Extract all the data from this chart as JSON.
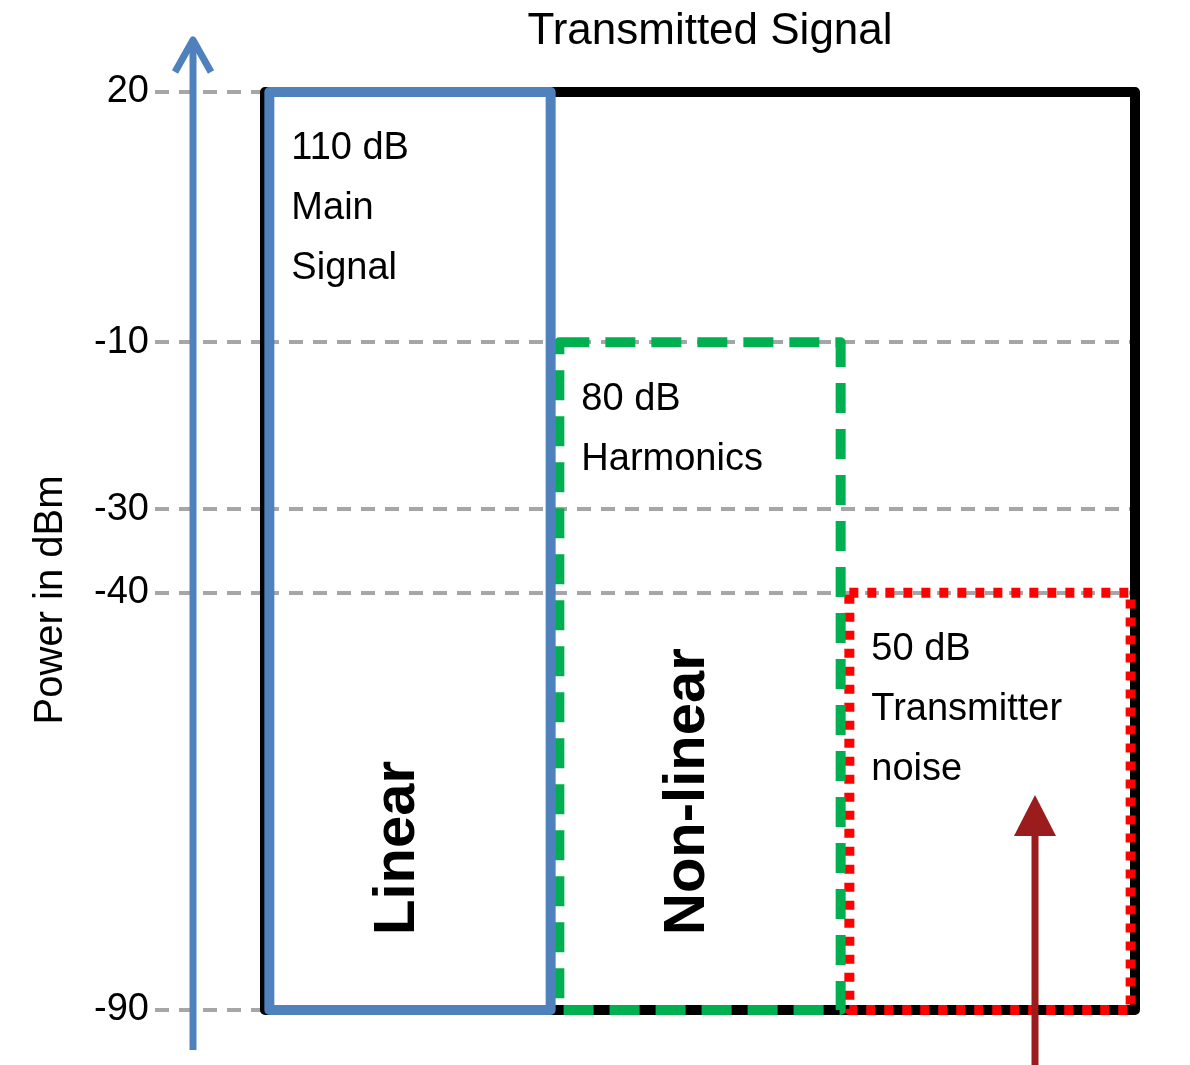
{
  "chart_data": {
    "type": "bar",
    "title": "Transmitted Signal",
    "ylabel": "Power in dBm",
    "categories": [
      null,
      null,
      null
    ],
    "series": [
      {
        "color": "#4f81bd",
        "values": [
          110,
          null,
          null
        ],
        "base": [
          -90,
          null,
          null
        ],
        "line_style": "solid",
        "value_labels": [
          "110 dB\nMain\nSignal",
          null,
          null
        ]
      },
      {
        "color": "#00b050",
        "values": [
          null,
          80,
          null
        ],
        "base": [
          null,
          -90,
          null
        ],
        "line_style": "dashed",
        "value_labels": [
          null,
          "80 dB\nHarmonics",
          null
        ]
      },
      {
        "color": "#ff0000",
        "values": [
          null,
          null,
          50
        ],
        "base": [
          null,
          null,
          -90
        ],
        "line_style": "dotted",
        "value_labels": [
          null,
          null,
          "50 dB\nTransmitter\nnoise"
        ]
      }
    ],
    "ylim": [
      -90,
      20
    ],
    "yticks": [
      20,
      -10,
      -30,
      -40,
      -90
    ],
    "grid": "y",
    "tick_labels": "y",
    "annotations": [
      "Linear",
      "Non-linear"
    ]
  }
}
